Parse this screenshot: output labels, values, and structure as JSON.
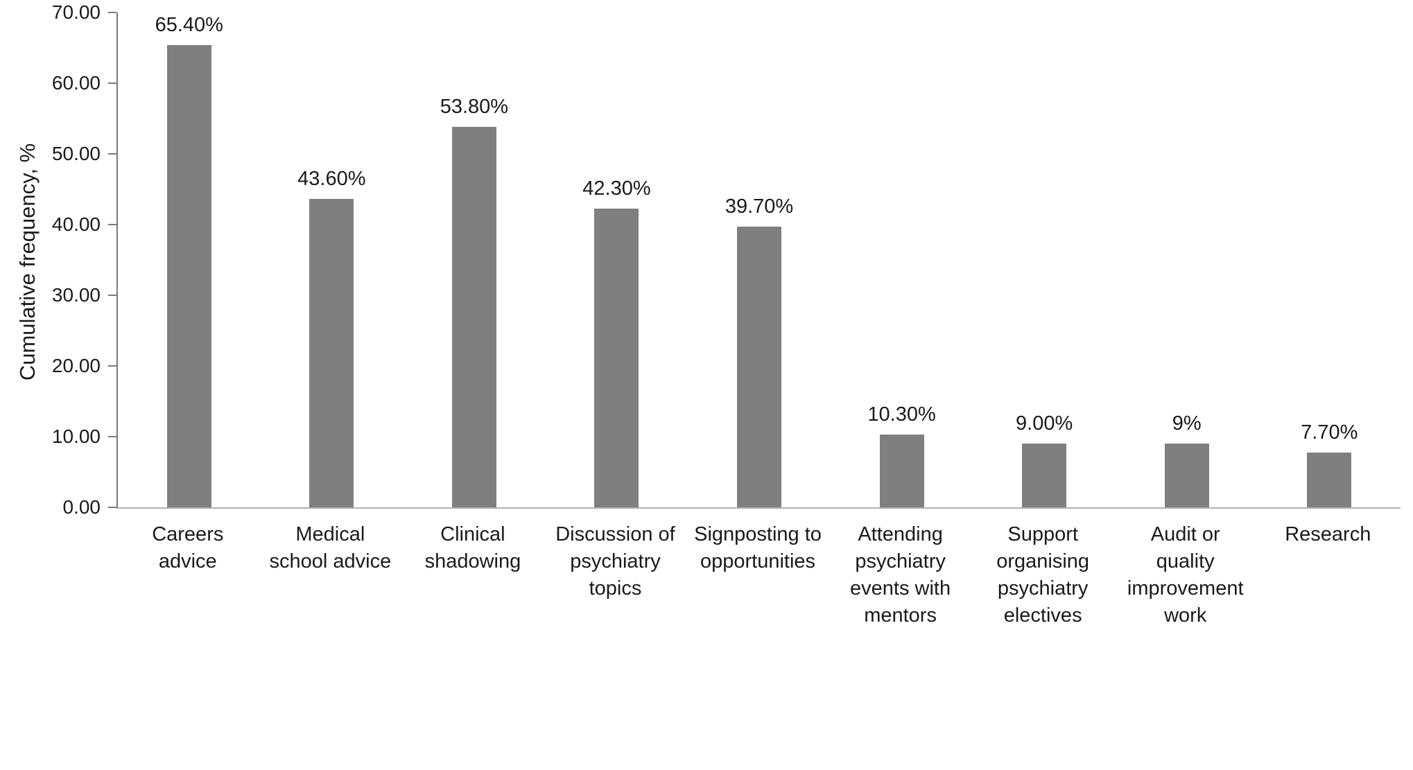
{
  "chart_data": {
    "type": "bar",
    "title": "",
    "xlabel": "",
    "ylabel": "Cumulative frequency, %",
    "ylim": [
      0,
      70
    ],
    "ytick_step": 10,
    "ytick_labels": [
      "0.00",
      "10.00",
      "20.00",
      "30.00",
      "40.00",
      "50.00",
      "60.00",
      "70.00"
    ],
    "grid": false,
    "legend": "none",
    "bar_color": "#7f7f7f",
    "categories": [
      "Careers advice",
      "Medical school advice",
      "Clinical shadowing",
      "Discussion of psychiatry topics",
      "Signposting to opportunities",
      "Attending psychiatry events with mentors",
      "Support organising psychiatry electives",
      "Audit or quality improvement work",
      "Research"
    ],
    "category_lines": [
      [
        "Careers",
        "advice"
      ],
      [
        "Medical",
        "school advice"
      ],
      [
        "Clinical",
        "shadowing"
      ],
      [
        "Discussion of",
        "psychiatry",
        "topics"
      ],
      [
        "Signposting to",
        "opportunities"
      ],
      [
        "Attending",
        "psychiatry",
        "events with",
        "mentors"
      ],
      [
        "Support",
        "organising",
        "psychiatry",
        "electives"
      ],
      [
        "Audit or",
        "quality",
        "improvement",
        "work"
      ],
      [
        "Research"
      ]
    ],
    "values": [
      65.4,
      43.6,
      53.8,
      42.3,
      39.7,
      10.3,
      9.0,
      9.0,
      7.7
    ],
    "value_labels": [
      "65.40%",
      "43.60%",
      "53.80%",
      "42.30%",
      "39.70%",
      "10.30%",
      "9.00%",
      "9%",
      "7.70%"
    ]
  }
}
